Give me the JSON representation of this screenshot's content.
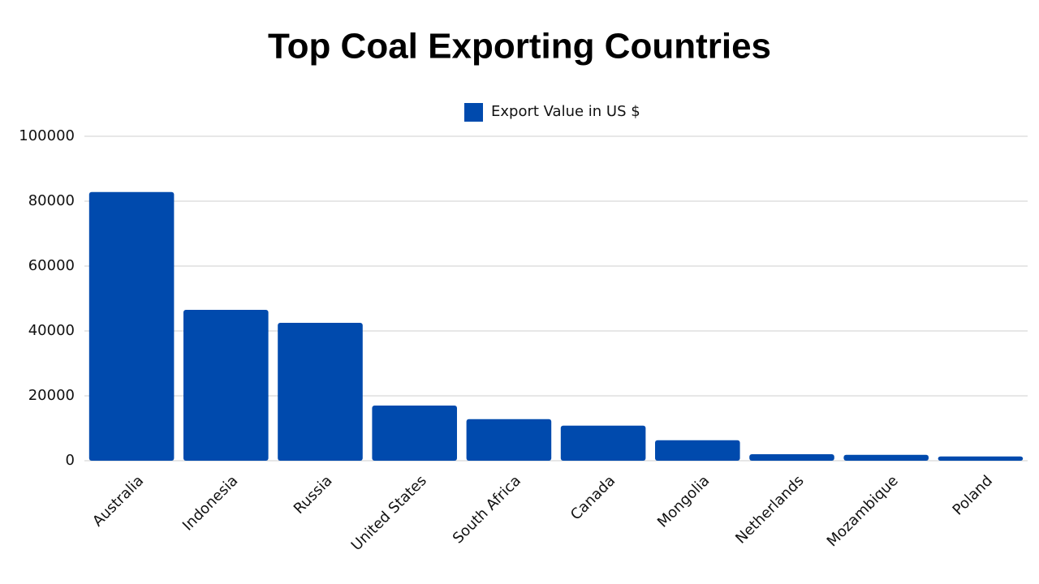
{
  "chart_data": {
    "type": "bar",
    "title": "Top Coal Exporting Countries",
    "categories": [
      "Australia",
      "Indonesia",
      "Russia",
      "United States",
      "South Africa",
      "Canada",
      "Mongolia",
      "Netherlands",
      "Mozambique",
      "Poland"
    ],
    "series": [
      {
        "name": "Export Value in US $",
        "color": "#004aad",
        "values": [
          82800,
          46500,
          42500,
          17000,
          12800,
          10800,
          6300,
          2000,
          1800,
          1300
        ]
      }
    ],
    "ylim": [
      0,
      100000
    ],
    "yticks": [
      0,
      20000,
      40000,
      60000,
      80000,
      100000
    ],
    "grid": true,
    "legend": "top"
  }
}
